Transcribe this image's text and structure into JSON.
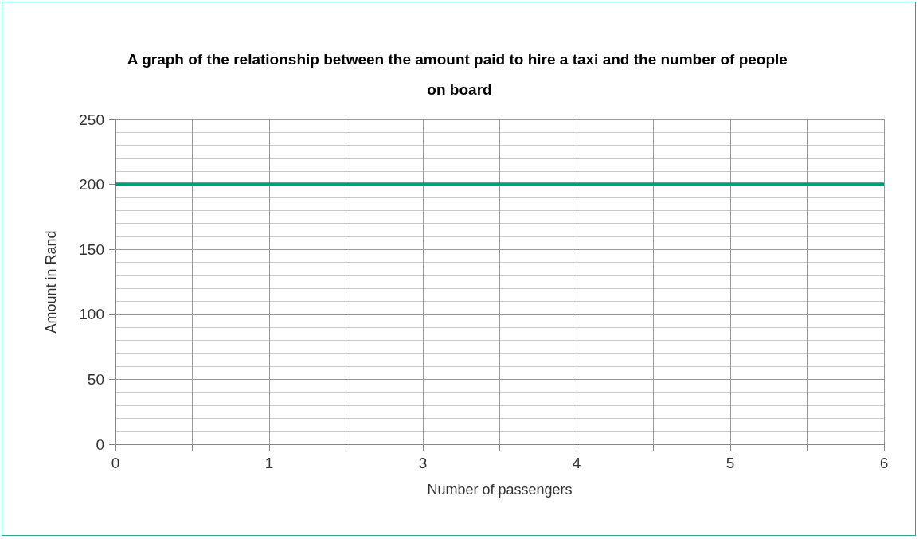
{
  "chart_data": {
    "type": "line",
    "title": "A graph of the relationship between the amount paid to hire a taxi and the number of people on board",
    "xlabel": "Number of passengers",
    "ylabel": "Amount in Rand",
    "categories": [
      "0",
      null,
      "1",
      null,
      "3",
      null,
      "4",
      null,
      "5",
      null,
      "6"
    ],
    "series": [
      {
        "color": "#009b77",
        "values": [
          200,
          200,
          200,
          200,
          200,
          200,
          200,
          200,
          200,
          200,
          200
        ]
      }
    ],
    "ylim": [
      0,
      250
    ],
    "yticks": [
      0,
      50,
      100,
      150,
      200,
      250
    ],
    "grid": true,
    "marker": "none",
    "line_style": "solid"
  }
}
